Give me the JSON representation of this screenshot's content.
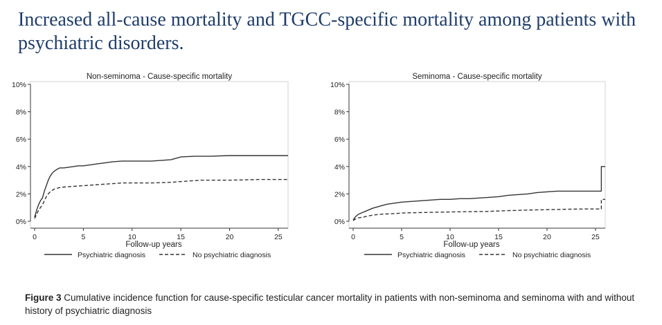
{
  "slide": {
    "title": "Increased all-cause mortality and TGCC-specific mortality among patients with psychiatric disorders."
  },
  "caption": {
    "label": "Figure 3",
    "text": " Cumulative incidence function for cause-specific testicular cancer mortality in patients with non-seminoma and seminoma with and without history of psychiatric diagnosis"
  },
  "chart_data": [
    {
      "type": "line",
      "title": "Non-seminoma - Cause-specific mortality",
      "xlabel": "Follow-up years",
      "ylabel": "",
      "xlim": [
        0,
        26
      ],
      "ylim": [
        0,
        10
      ],
      "xticks": [
        0,
        5,
        10,
        15,
        20,
        25
      ],
      "yticks": [
        0,
        2,
        4,
        6,
        8,
        10
      ],
      "ytick_labels": [
        "0%",
        "2%",
        "4%",
        "6%",
        "8%",
        "10%"
      ],
      "grid": false,
      "legend": "bottom",
      "series": [
        {
          "name": "Psychiatric diagnosis",
          "style": "solid",
          "x": [
            0,
            0.2,
            0.4,
            0.6,
            0.8,
            1.0,
            1.2,
            1.4,
            1.6,
            1.8,
            2.0,
            2.3,
            2.6,
            3.0,
            3.5,
            4.0,
            4.5,
            5.0,
            5.5,
            6.0,
            6.5,
            7.0,
            7.5,
            8.0,
            9.0,
            10.0,
            11.0,
            12.0,
            13.0,
            14.0,
            14.5,
            15.0,
            16.5,
            18.0,
            20.0,
            22.0,
            24.0,
            26.0
          ],
          "values": [
            0.3,
            0.8,
            1.2,
            1.5,
            1.7,
            2.2,
            2.6,
            3.0,
            3.3,
            3.5,
            3.65,
            3.8,
            3.9,
            3.9,
            3.95,
            4.0,
            4.05,
            4.05,
            4.1,
            4.15,
            4.2,
            4.25,
            4.3,
            4.35,
            4.4,
            4.4,
            4.4,
            4.4,
            4.45,
            4.5,
            4.6,
            4.7,
            4.75,
            4.75,
            4.8,
            4.8,
            4.8,
            4.8
          ]
        },
        {
          "name": "No psychiatric diagnosis",
          "style": "dashed",
          "x": [
            0,
            0.2,
            0.4,
            0.6,
            0.8,
            1.0,
            1.2,
            1.4,
            1.6,
            1.8,
            2.0,
            2.5,
            3.0,
            4.0,
            5.0,
            6.0,
            7.0,
            8.0,
            9.0,
            10.0,
            12.0,
            14.0,
            15.0,
            16.0,
            17.0,
            20.0,
            23.0,
            26.0
          ],
          "values": [
            0.2,
            0.5,
            0.8,
            1.0,
            1.2,
            1.5,
            1.8,
            2.0,
            2.15,
            2.25,
            2.35,
            2.45,
            2.5,
            2.55,
            2.6,
            2.65,
            2.7,
            2.75,
            2.8,
            2.8,
            2.8,
            2.85,
            2.9,
            2.95,
            3.0,
            3.0,
            3.05,
            3.05
          ]
        }
      ]
    },
    {
      "type": "line",
      "title": "Seminoma - Cause-specific mortality",
      "xlabel": "Follow-up years",
      "ylabel": "",
      "xlim": [
        0,
        26
      ],
      "ylim": [
        0,
        10
      ],
      "xticks": [
        0,
        5,
        10,
        15,
        20,
        25
      ],
      "yticks": [
        0,
        2,
        4,
        6,
        8,
        10
      ],
      "ytick_labels": [
        "0%",
        "2%",
        "4%",
        "6%",
        "8%",
        "10%"
      ],
      "grid": false,
      "legend": "bottom",
      "series": [
        {
          "name": "Psychiatric diagnosis",
          "style": "solid",
          "x": [
            0,
            0.2,
            0.5,
            1.0,
            1.5,
            2.0,
            2.5,
            3.0,
            3.5,
            4.0,
            5.0,
            6.0,
            7.0,
            8.0,
            9.0,
            10.0,
            11.0,
            12.0,
            13.0,
            14.0,
            15.0,
            16.0,
            17.0,
            18.0,
            19.0,
            20.0,
            21.0,
            22.0,
            23.0,
            24.0,
            25.0,
            25.6,
            25.6,
            26.0
          ],
          "values": [
            0.1,
            0.3,
            0.5,
            0.65,
            0.8,
            0.95,
            1.05,
            1.15,
            1.25,
            1.3,
            1.4,
            1.45,
            1.5,
            1.55,
            1.6,
            1.6,
            1.65,
            1.65,
            1.7,
            1.75,
            1.8,
            1.9,
            1.95,
            2.0,
            2.1,
            2.15,
            2.2,
            2.2,
            2.2,
            2.2,
            2.2,
            2.2,
            4.0,
            4.0
          ]
        },
        {
          "name": "No psychiatric diagnosis",
          "style": "dashed",
          "x": [
            0,
            0.2,
            0.5,
            1.0,
            1.5,
            2.0,
            3.0,
            4.0,
            5.0,
            6.0,
            8.0,
            10.0,
            12.0,
            14.0,
            15.0,
            16.0,
            18.0,
            20.0,
            22.0,
            24.0,
            25.6,
            25.6,
            26.0
          ],
          "values": [
            0.05,
            0.15,
            0.25,
            0.3,
            0.38,
            0.45,
            0.52,
            0.55,
            0.6,
            0.62,
            0.65,
            0.68,
            0.7,
            0.72,
            0.75,
            0.78,
            0.82,
            0.85,
            0.88,
            0.9,
            0.9,
            1.6,
            1.6
          ]
        }
      ]
    }
  ]
}
